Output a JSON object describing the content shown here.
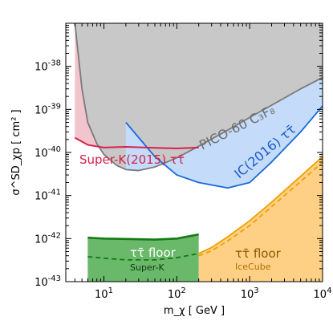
{
  "chart_data": {
    "type": "area",
    "xlabel": "m_χ [ GeV ]",
    "ylabel": "σ^SD_χp [ cm² ]",
    "x_scale": "log",
    "y_scale": "log",
    "xlim": [
      3,
      10000
    ],
    "ylim": [
      1e-43,
      1e-37
    ],
    "x_ticks": [
      {
        "value": 10,
        "base": "10",
        "exp": "1"
      },
      {
        "value": 100,
        "base": "10",
        "exp": "2"
      },
      {
        "value": 1000,
        "base": "10",
        "exp": "3"
      },
      {
        "value": 10000,
        "base": "10",
        "exp": "4"
      }
    ],
    "y_ticks": [
      {
        "value": 1e-43,
        "base": "10",
        "exp": "-43"
      },
      {
        "value": 1e-42,
        "base": "10",
        "exp": "-42"
      },
      {
        "value": 1e-41,
        "base": "10",
        "exp": "-41"
      },
      {
        "value": 1e-40,
        "base": "10",
        "exp": "-40"
      },
      {
        "value": 1e-39,
        "base": "10",
        "exp": "-39"
      },
      {
        "value": 1e-38,
        "base": "10",
        "exp": "-38"
      }
    ],
    "annotations": {
      "pico": "PICO-60 C₃F₈",
      "ic2016": "IC(2016) ττ̄",
      "superk2015": "Super-K(2015) ττ̄",
      "floor_sk_1": "ττ̄ floor",
      "floor_sk_2": "Super-K",
      "floor_ic_1": "ττ̄ floor",
      "floor_ic_2": "IceCube"
    },
    "series": [
      {
        "id": "pico",
        "color": "#7a7a7a",
        "fill": "#c8c8c8",
        "x": [
          4,
          5,
          6,
          8,
          10,
          15,
          20,
          30,
          50,
          70,
          100,
          200,
          500,
          1000,
          2000,
          5000,
          10000
        ],
        "y": [
          1e-37,
          3e-39,
          5e-40,
          1.6e-40,
          9e-41,
          5e-41,
          4e-41,
          3.8e-41,
          4.6e-41,
          5.8e-41,
          7.5e-41,
          1.4e-40,
          3.3e-40,
          6.5e-40,
          1.25e-39,
          3e-39,
          5.5e-39
        ]
      },
      {
        "id": "ic2016",
        "color": "#1a6ad8",
        "fill": "#c4dcfa",
        "x": [
          20,
          50,
          100,
          200,
          500,
          1000,
          2000,
          5000,
          10000
        ],
        "y": [
          5e-40,
          8e-41,
          3e-41,
          2e-41,
          1.5e-41,
          2e-41,
          6e-41,
          3e-40,
          1.2e-39
        ]
      },
      {
        "id": "superk2015",
        "color": "#d8204a",
        "fill": "#f2c4cc",
        "x": [
          4,
          6,
          10,
          20,
          50,
          100,
          200
        ],
        "y": [
          2.2e-40,
          1.5e-40,
          1.3e-40,
          1.35e-40,
          1.28e-40,
          1.24e-40,
          1.3e-40
        ]
      },
      {
        "id": "floor_superk",
        "color": "#157a15",
        "fill": "#6ab86a",
        "x": [
          6,
          10,
          20,
          50,
          100,
          200
        ],
        "y": [
          1.05e-42,
          1e-42,
          9.8e-43,
          9.5e-43,
          1e-42,
          1.25e-42
        ]
      },
      {
        "id": "floor_superk_dashed",
        "color": "#157a15",
        "x": [
          6,
          10,
          20,
          50,
          100,
          200
        ],
        "y": [
          3.8e-43,
          3.5e-43,
          3.2e-43,
          3.2e-43,
          3.6e-43,
          4.5e-43
        ]
      },
      {
        "id": "floor_icecube",
        "color": "#f0a000",
        "fill": "#fdd085",
        "x": [
          200,
          300,
          500,
          1000,
          2000,
          5000,
          10000
        ],
        "y": [
          4.5e-43,
          6.2e-43,
          1.1e-42,
          2.6e-42,
          7e-42,
          2.8e-41,
          8e-41
        ]
      },
      {
        "id": "floor_icecube_dashed",
        "color": "#f0a000",
        "x": [
          200,
          300,
          500,
          1000,
          2000,
          5000,
          10000
        ],
        "y": [
          4e-43,
          5.2e-43,
          8.8e-43,
          2e-42,
          5.5e-42,
          2.1e-41,
          6e-41
        ]
      }
    ]
  }
}
